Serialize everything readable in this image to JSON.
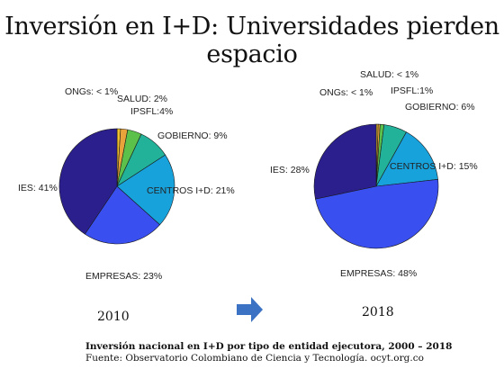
{
  "title": "Inversión en I+D: Universidades pierden espacio",
  "caption": {
    "line1": "Inversión nacional en I+D por tipo de entidad ejecutora, 2000 – 2018",
    "line2": "Fuente: Observatorio Colombiano de Ciencia y Tecnología. ocyt.org.co"
  },
  "arrow_icon": "right-arrow-icon",
  "colors": {
    "ongs": "#f2c12e",
    "salud": "#e8a43a",
    "ipsfl": "#5cc14a",
    "gobierno": "#22b29a",
    "centros": "#18a2dc",
    "empresas": "#3a4ff0",
    "ies": "#2b1f8e"
  },
  "chart_data": [
    {
      "type": "pie",
      "year": "2010",
      "slices": [
        {
          "key": "ongs",
          "label": "ONGs: < 1%",
          "value": 1
        },
        {
          "key": "salud",
          "label": "SALUD: 2%",
          "value": 2
        },
        {
          "key": "ipsfl",
          "label": "IPSFL:4%",
          "value": 4
        },
        {
          "key": "gobierno",
          "label": "GOBIERNO: 9%",
          "value": 9
        },
        {
          "key": "centros",
          "label": "CENTROS I+D: 21%",
          "value": 21
        },
        {
          "key": "empresas",
          "label": "EMPRESAS: 23%",
          "value": 23
        },
        {
          "key": "ies",
          "label": "IES: 41%",
          "value": 41
        }
      ]
    },
    {
      "type": "pie",
      "year": "2018",
      "slices": [
        {
          "key": "ongs",
          "label": "ONGs: < 1%",
          "value": 0.5
        },
        {
          "key": "salud",
          "label": "SALUD: < 1%",
          "value": 0.5
        },
        {
          "key": "ipsfl",
          "label": "IPSFL:1%",
          "value": 1
        },
        {
          "key": "gobierno",
          "label": "GOBIERNO: 6%",
          "value": 6
        },
        {
          "key": "centros",
          "label": "CENTROS I+D: 15%",
          "value": 15
        },
        {
          "key": "empresas",
          "label": "EMPRESAS: 48%",
          "value": 48
        },
        {
          "key": "ies",
          "label": "IES: 28%",
          "value": 28
        }
      ]
    }
  ]
}
